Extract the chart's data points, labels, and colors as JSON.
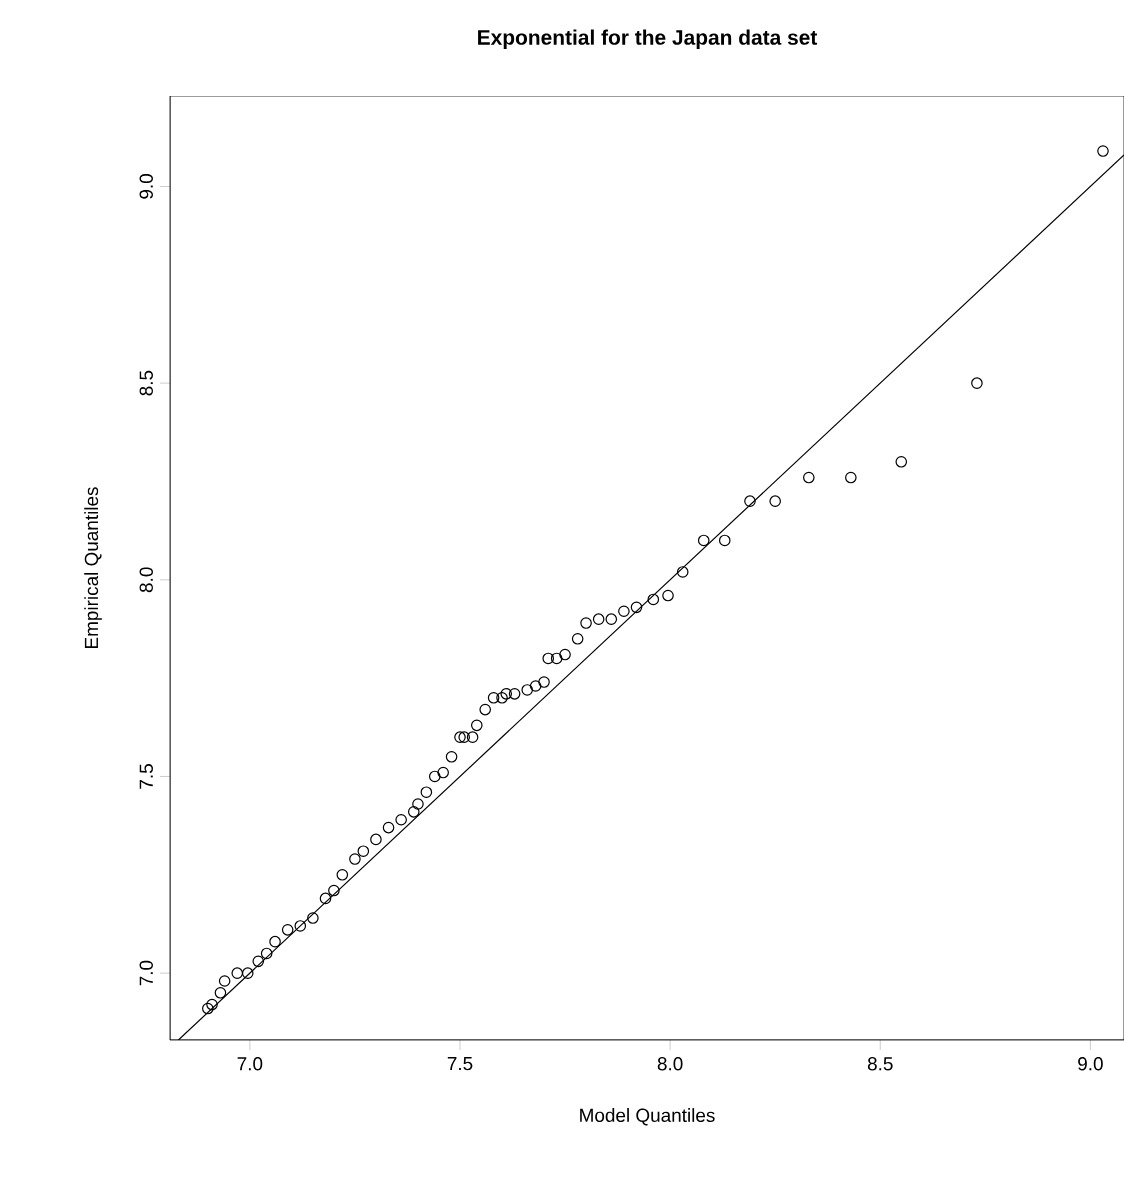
{
  "chart_data": {
    "type": "scatter",
    "title": "Exponential for the Japan data set",
    "xlabel": "Model Quantiles",
    "ylabel": "Empirical Quantiles",
    "marker": "circle",
    "grid": false,
    "xlim": [
      6.81,
      9.08
    ],
    "ylim": [
      6.83,
      9.23
    ],
    "xticks": [
      {
        "value": 7,
        "label": "7.0"
      },
      {
        "value": 7.5,
        "label": "7.5"
      },
      {
        "value": 8,
        "label": "8.0"
      },
      {
        "value": 8.5,
        "label": "8.5"
      },
      {
        "value": 9,
        "label": "9.0"
      }
    ],
    "yticks": [
      {
        "value": 7,
        "label": "7.0"
      },
      {
        "value": 7.5,
        "label": "7.5"
      },
      {
        "value": 8,
        "label": "8.0"
      },
      {
        "value": 8.5,
        "label": "8.5"
      },
      {
        "value": 9,
        "label": "9.0"
      }
    ],
    "series": [
      {
        "color": "#000000",
        "x": [
          6.9,
          6.91,
          6.93,
          6.94,
          6.97,
          6.995,
          7.02,
          7.04,
          7.06,
          7.09,
          7.12,
          7.15,
          7.18,
          7.2,
          7.22,
          7.25,
          7.27,
          7.3,
          7.33,
          7.36,
          7.39,
          7.4,
          7.42,
          7.44,
          7.46,
          7.48,
          7.5,
          7.51,
          7.53,
          7.54,
          7.56,
          7.58,
          7.6,
          7.61,
          7.63,
          7.66,
          7.68,
          7.7,
          7.71,
          7.73,
          7.75,
          7.78,
          7.8,
          7.83,
          7.86,
          7.89,
          7.92,
          7.96,
          7.995,
          8.03,
          8.08,
          8.13,
          8.19,
          8.25,
          8.33,
          8.43,
          8.55,
          8.73,
          9.03
        ],
        "values": [
          6.91,
          6.92,
          6.95,
          6.98,
          7.0,
          7.0,
          7.03,
          7.05,
          7.08,
          7.11,
          7.12,
          7.14,
          7.19,
          7.21,
          7.25,
          7.29,
          7.31,
          7.34,
          7.37,
          7.39,
          7.41,
          7.43,
          7.46,
          7.5,
          7.51,
          7.55,
          7.6,
          7.6,
          7.6,
          7.63,
          7.67,
          7.7,
          7.7,
          7.71,
          7.71,
          7.72,
          7.73,
          7.74,
          7.8,
          7.8,
          7.81,
          7.85,
          7.89,
          7.9,
          7.9,
          7.92,
          7.93,
          7.95,
          7.96,
          8.02,
          8.1,
          8.1,
          8.2,
          8.2,
          8.26,
          8.26,
          8.3,
          8.5,
          9.09
        ]
      },
      {
        "type": "line",
        "color": "#000000",
        "marker": "none",
        "x": [
          6.83,
          9.08
        ],
        "values": [
          6.83,
          9.08
        ]
      }
    ]
  }
}
